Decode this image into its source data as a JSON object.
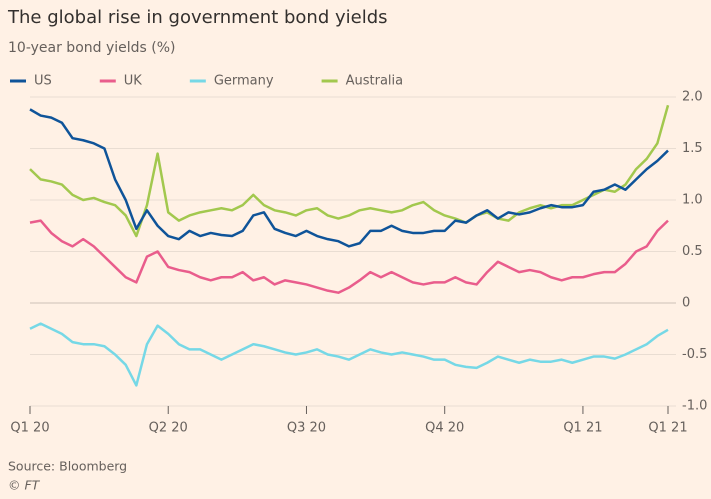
{
  "chart_data": {
    "type": "line",
    "title": "The global rise in government bond yields",
    "subtitle": "10-year bond yields (%)",
    "source": "Source: Bloomberg",
    "credit": "© FT",
    "categories": [
      "Q1 20",
      null,
      null,
      null,
      null,
      null,
      null,
      null,
      null,
      null,
      null,
      null,
      null,
      "Q2 20",
      null,
      null,
      null,
      null,
      null,
      null,
      null,
      null,
      null,
      null,
      null,
      null,
      "Q3 20",
      null,
      null,
      null,
      null,
      null,
      null,
      null,
      null,
      null,
      null,
      null,
      null,
      "Q4 20",
      null,
      null,
      null,
      null,
      null,
      null,
      null,
      null,
      null,
      null,
      null,
      null,
      "Q1 21",
      null,
      null,
      null,
      null,
      null,
      null,
      null,
      "Q1 21"
    ],
    "series": [
      {
        "name": "US",
        "color": "#0f5499",
        "values": [
          1.88,
          1.82,
          1.8,
          1.75,
          1.6,
          1.58,
          1.55,
          1.5,
          1.2,
          1.0,
          0.72,
          0.9,
          0.75,
          0.65,
          0.62,
          0.7,
          0.65,
          0.68,
          0.66,
          0.65,
          0.7,
          0.85,
          0.88,
          0.72,
          0.68,
          0.65,
          0.7,
          0.65,
          0.62,
          0.6,
          0.55,
          0.58,
          0.7,
          0.7,
          0.75,
          0.7,
          0.68,
          0.68,
          0.7,
          0.7,
          0.8,
          0.78,
          0.85,
          0.9,
          0.82,
          0.88,
          0.86,
          0.88,
          0.92,
          0.95,
          0.93,
          0.93,
          0.95,
          1.08,
          1.1,
          1.15,
          1.1,
          1.2,
          1.3,
          1.38,
          1.48
        ]
      },
      {
        "name": "UK",
        "color": "#e95d8c",
        "values": [
          0.78,
          0.8,
          0.68,
          0.6,
          0.55,
          0.62,
          0.55,
          0.45,
          0.35,
          0.25,
          0.2,
          0.45,
          0.5,
          0.35,
          0.32,
          0.3,
          0.25,
          0.22,
          0.25,
          0.25,
          0.3,
          0.22,
          0.25,
          0.18,
          0.22,
          0.2,
          0.18,
          0.15,
          0.12,
          0.1,
          0.15,
          0.22,
          0.3,
          0.25,
          0.3,
          0.25,
          0.2,
          0.18,
          0.2,
          0.2,
          0.25,
          0.2,
          0.18,
          0.3,
          0.4,
          0.35,
          0.3,
          0.32,
          0.3,
          0.25,
          0.22,
          0.25,
          0.25,
          0.28,
          0.3,
          0.3,
          0.38,
          0.5,
          0.55,
          0.7,
          0.8
        ]
      },
      {
        "name": "Germany",
        "color": "#76d8e6",
        "values": [
          -0.25,
          -0.2,
          -0.25,
          -0.3,
          -0.38,
          -0.4,
          -0.4,
          -0.42,
          -0.5,
          -0.6,
          -0.8,
          -0.4,
          -0.22,
          -0.3,
          -0.4,
          -0.45,
          -0.45,
          -0.5,
          -0.55,
          -0.5,
          -0.45,
          -0.4,
          -0.42,
          -0.45,
          -0.48,
          -0.5,
          -0.48,
          -0.45,
          -0.5,
          -0.52,
          -0.55,
          -0.5,
          -0.45,
          -0.48,
          -0.5,
          -0.48,
          -0.5,
          -0.52,
          -0.55,
          -0.55,
          -0.6,
          -0.62,
          -0.63,
          -0.58,
          -0.52,
          -0.55,
          -0.58,
          -0.55,
          -0.57,
          -0.57,
          -0.55,
          -0.58,
          -0.55,
          -0.52,
          -0.52,
          -0.54,
          -0.5,
          -0.45,
          -0.4,
          -0.32,
          -0.26
        ]
      },
      {
        "name": "Australia",
        "color": "#a2c84e",
        "values": [
          1.3,
          1.2,
          1.18,
          1.15,
          1.05,
          1.0,
          1.02,
          0.98,
          0.95,
          0.85,
          0.65,
          0.95,
          1.45,
          0.88,
          0.8,
          0.85,
          0.88,
          0.9,
          0.92,
          0.9,
          0.95,
          1.05,
          0.95,
          0.9,
          0.88,
          0.85,
          0.9,
          0.92,
          0.85,
          0.82,
          0.85,
          0.9,
          0.92,
          0.9,
          0.88,
          0.9,
          0.95,
          0.98,
          0.9,
          0.85,
          0.82,
          0.78,
          0.85,
          0.88,
          0.82,
          0.8,
          0.88,
          0.92,
          0.95,
          0.92,
          0.95,
          0.95,
          1.0,
          1.05,
          1.1,
          1.08,
          1.15,
          1.3,
          1.4,
          1.55,
          1.92
        ]
      }
    ],
    "ylim": [
      -1,
      2
    ],
    "yticks": [
      {
        "value": 2,
        "label": "2.0"
      },
      1.5,
      {
        "value": 1,
        "label": "1.0"
      },
      0.5,
      0,
      -0.5,
      {
        "value": -1,
        "label": "-1.0"
      }
    ],
    "grid": true
  }
}
